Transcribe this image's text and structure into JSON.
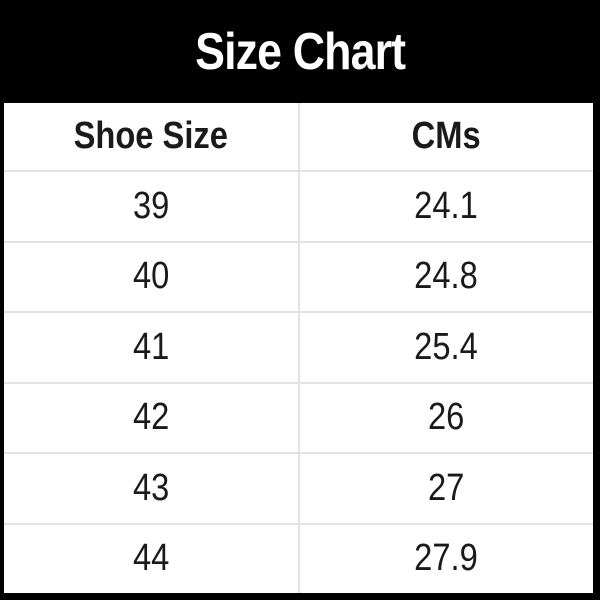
{
  "title": "Size Chart",
  "headers": [
    "Shoe Size",
    "CMs"
  ],
  "rows": [
    [
      "39",
      "24.1"
    ],
    [
      "40",
      "24.8"
    ],
    [
      "41",
      "25.4"
    ],
    [
      "42",
      "26"
    ],
    [
      "43",
      "27"
    ],
    [
      "44",
      "27.9"
    ]
  ],
  "colors": {
    "title_background": "#000000",
    "title_text": "#ffffff",
    "table_background": "#ffffff",
    "grid_lines": "#e2e2e2"
  }
}
